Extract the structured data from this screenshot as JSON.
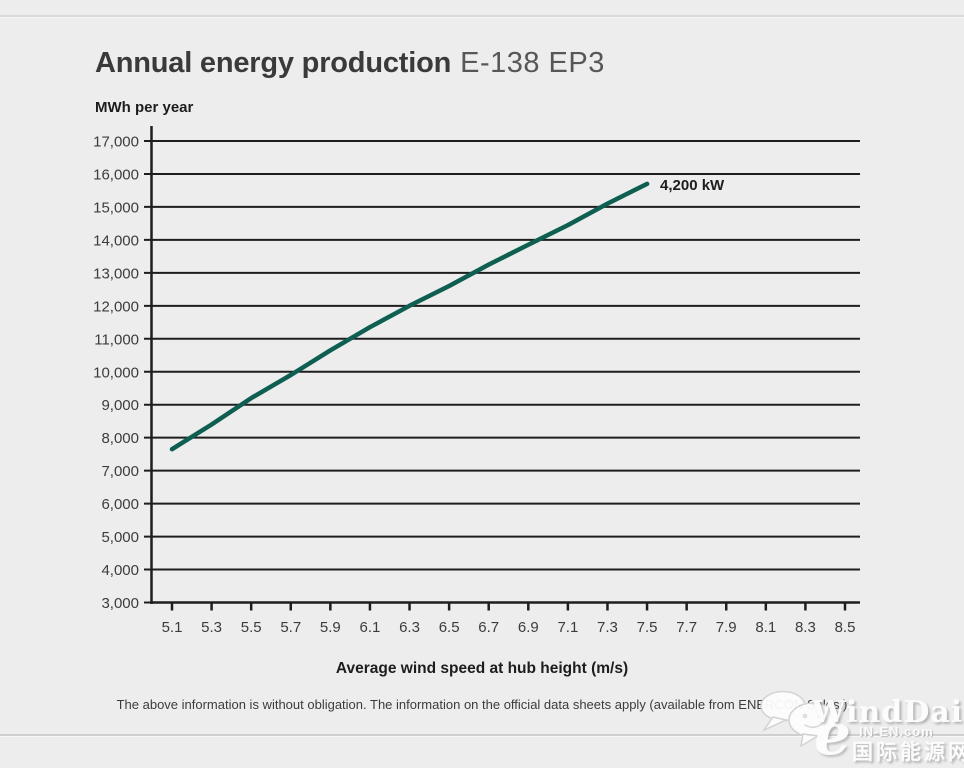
{
  "header": {
    "title_main": "Annual energy production",
    "title_model": "E-138 EP3"
  },
  "chart": {
    "y_unit_label": "MWh per year",
    "x_axis_label": "Average wind speed at hub height (m/s)",
    "annotation_label": "4,200 kW"
  },
  "footer": {
    "disclaimer": "The above information is without obligation. The information on the official data sheets apply (available from ENERCON Sales.)"
  },
  "watermark": {
    "brand": "WindDaily",
    "logo_letter": "e",
    "site": "IN-EN.com",
    "site_name_cn": "国际能源网"
  },
  "colors": {
    "background": "#ededed",
    "hairline": "#d9d9d9",
    "grid": "#1e1e1e",
    "series_line": "#0e5f51",
    "title_text": "#3a3a3a",
    "model_text": "#575757",
    "label_text": "#3c3c3c",
    "bold_text": "#1d1d1d",
    "watermark_text": "#fdfdfd"
  },
  "chart_data": {
    "type": "line",
    "title": "Annual energy production E-138 EP3",
    "xlabel": "Average wind speed at hub height (m/s)",
    "ylabel": "MWh per year",
    "x_ticks": [
      5.1,
      5.3,
      5.5,
      5.7,
      5.9,
      6.1,
      6.3,
      6.5,
      6.7,
      6.9,
      7.1,
      7.3,
      7.5,
      7.7,
      7.9,
      8.1,
      8.3,
      8.5
    ],
    "y_ticks": [
      3000,
      4000,
      5000,
      6000,
      7000,
      8000,
      9000,
      10000,
      11000,
      12000,
      13000,
      14000,
      15000,
      16000,
      17000
    ],
    "xlim": [
      5.1,
      8.5
    ],
    "ylim": [
      3000,
      17000
    ],
    "grid": "horizontal",
    "legend_position": "inline-annotation-at-line-end",
    "series": [
      {
        "name": "4,200 kW",
        "x": [
          5.1,
          5.3,
          5.5,
          5.7,
          5.9,
          6.1,
          6.3,
          6.5,
          6.7,
          6.9,
          7.1,
          7.3,
          7.5
        ],
        "y": [
          7650,
          8400,
          9200,
          9900,
          10650,
          11350,
          12000,
          12600,
          13250,
          13850,
          14450,
          15100,
          15700
        ]
      }
    ]
  }
}
